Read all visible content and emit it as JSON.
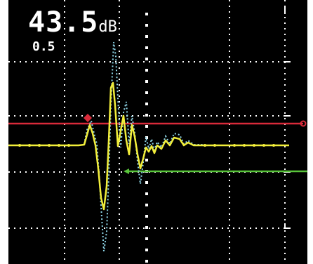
{
  "display": {
    "gain_value": "43.5",
    "gain_unit": "dB",
    "range_value": "0.5"
  },
  "colors": {
    "background": "#000000",
    "grid": "#ffffff",
    "a_scan_live": "#f2ee3a",
    "a_scan_envelope": "#8fd6e8",
    "gate_a": "#d92a3a",
    "gate_b": "#58c43a",
    "text": "#ffffff"
  },
  "gates": {
    "gate_a": {
      "level_pct": 45,
      "start_pct": 0,
      "end_pct": 100
    },
    "gate_b": {
      "level_pct": 65,
      "start_pct": 40,
      "end_pct": 100
    }
  }
}
